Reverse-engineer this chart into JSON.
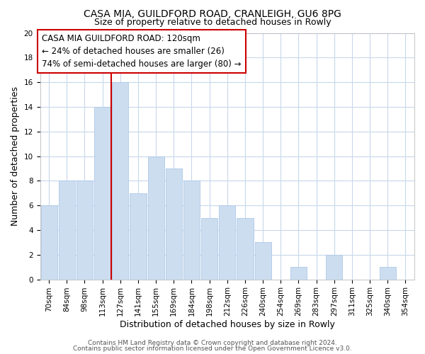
{
  "title1": "CASA MIA, GUILDFORD ROAD, CRANLEIGH, GU6 8PG",
  "title2": "Size of property relative to detached houses in Rowly",
  "xlabel": "Distribution of detached houses by size in Rowly",
  "ylabel": "Number of detached properties",
  "bin_labels": [
    "70sqm",
    "84sqm",
    "98sqm",
    "113sqm",
    "127sqm",
    "141sqm",
    "155sqm",
    "169sqm",
    "184sqm",
    "198sqm",
    "212sqm",
    "226sqm",
    "240sqm",
    "254sqm",
    "269sqm",
    "283sqm",
    "297sqm",
    "311sqm",
    "325sqm",
    "340sqm",
    "354sqm"
  ],
  "bar_heights": [
    6,
    8,
    8,
    14,
    16,
    7,
    10,
    9,
    8,
    5,
    6,
    5,
    3,
    0,
    1,
    0,
    2,
    0,
    0,
    1,
    0
  ],
  "bar_color": "#ccddf0",
  "bar_edge_color": "#aec8e8",
  "ref_line_color": "#cc0000",
  "ylim": [
    0,
    20
  ],
  "yticks": [
    0,
    2,
    4,
    6,
    8,
    10,
    12,
    14,
    16,
    18,
    20
  ],
  "ann_line1": "CASA MIA GUILDFORD ROAD: 120sqm",
  "ann_line2": "← 24% of detached houses are smaller (26)",
  "ann_line3": "74% of semi-detached houses are larger (80) →",
  "footer1": "Contains HM Land Registry data © Crown copyright and database right 2024.",
  "footer2": "Contains public sector information licensed under the Open Government Licence v3.0.",
  "bg_color": "#ffffff",
  "grid_color": "#c8d8ec",
  "title1_fontsize": 10,
  "title2_fontsize": 9,
  "ann_fontsize": 8.5,
  "xlabel_fontsize": 9,
  "ylabel_fontsize": 9,
  "tick_fontsize": 7.5,
  "footer_fontsize": 6.5
}
